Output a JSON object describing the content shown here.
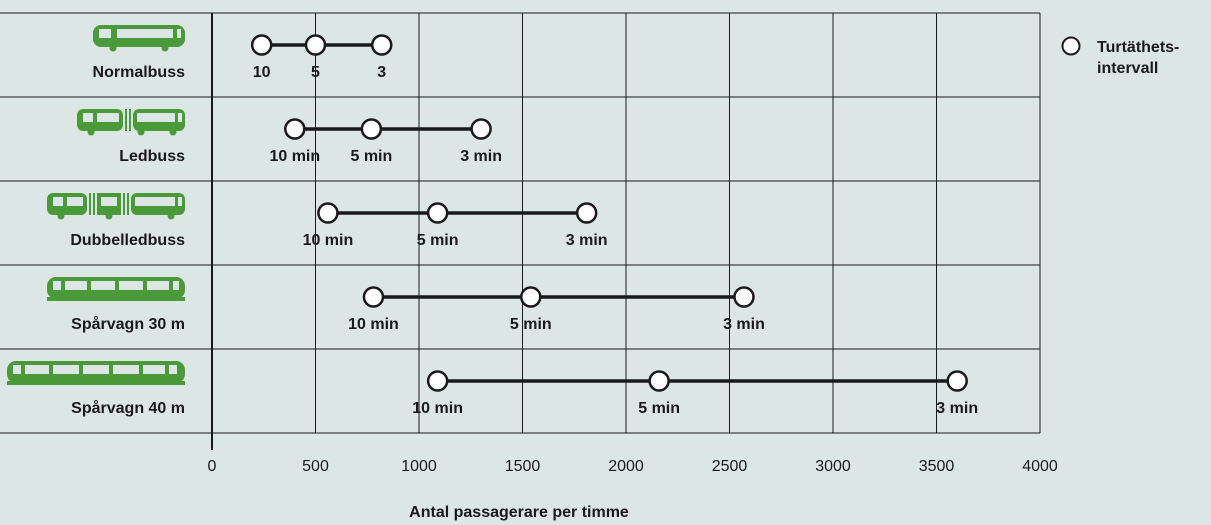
{
  "chart_data": {
    "type": "range-dot",
    "xlabel": "Antal passagerare per timme",
    "xlim": [
      0,
      4000
    ],
    "xticks": [
      0,
      500,
      1000,
      1500,
      2000,
      2500,
      3000,
      3500,
      4000
    ],
    "grid": true,
    "legend": {
      "label": "Turtäthets-\nintervall",
      "placement": "top-right"
    },
    "series": [
      {
        "name": "Normalbuss",
        "vehicle_icon": "bus-icon",
        "points": [
          {
            "x": 240,
            "label": "10"
          },
          {
            "x": 500,
            "label": "5"
          },
          {
            "x": 820,
            "label": "3"
          }
        ]
      },
      {
        "name": "Ledbuss",
        "vehicle_icon": "articulated-bus-icon",
        "points": [
          {
            "x": 400,
            "label": "10 min"
          },
          {
            "x": 770,
            "label": "5 min"
          },
          {
            "x": 1300,
            "label": "3 min"
          }
        ]
      },
      {
        "name": "Dubbelledbuss",
        "vehicle_icon": "double-articulated-bus-icon",
        "points": [
          {
            "x": 560,
            "label": "10 min"
          },
          {
            "x": 1090,
            "label": "5 min"
          },
          {
            "x": 1810,
            "label": "3 min"
          }
        ]
      },
      {
        "name": "Spårvagn 30 m",
        "vehicle_icon": "tram-30m-icon",
        "points": [
          {
            "x": 780,
            "label": "10 min"
          },
          {
            "x": 1540,
            "label": "5 min"
          },
          {
            "x": 2570,
            "label": "3 min"
          }
        ]
      },
      {
        "name": "Spårvagn 40 m",
        "vehicle_icon": "tram-40m-icon",
        "points": [
          {
            "x": 1090,
            "label": "10 min"
          },
          {
            "x": 2160,
            "label": "5 min"
          },
          {
            "x": 3600,
            "label": "3 min"
          }
        ]
      }
    ]
  },
  "colors": {
    "background": "#dce6e5",
    "vehicle": "#4a9a3a",
    "line": "#1a1a1a",
    "marker_fill": "#ffffff"
  }
}
